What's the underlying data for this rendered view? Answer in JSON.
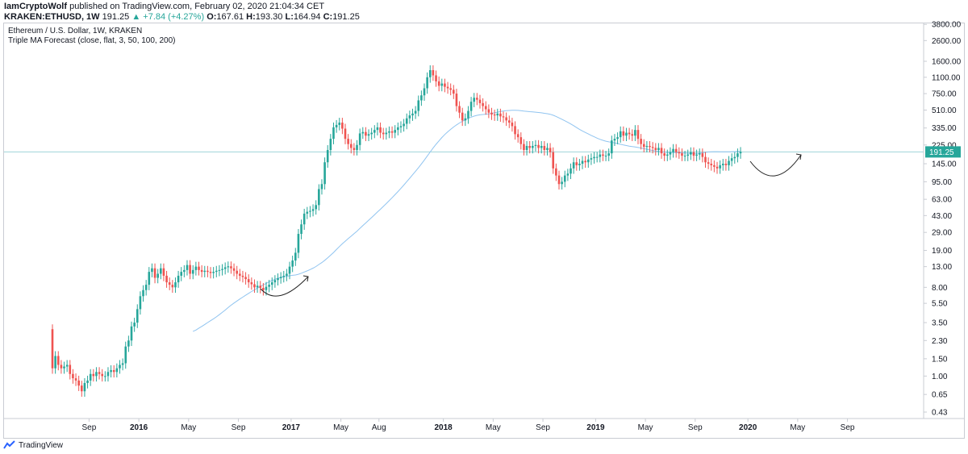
{
  "header": {
    "author": "IamCryptoWolf",
    "published_text": "published on TradingView.com, February 02, 2020 21:04:34 CET",
    "symbol": "KRAKEN:ETHUSD, 1W",
    "last": "191.25",
    "change": "▲ +7.84 (+4.27%)",
    "o_label": "O:",
    "o_value": "167.61",
    "h_label": "H:",
    "h_value": "193.30",
    "l_label": "L:",
    "l_value": "164.94",
    "c_label": "C:",
    "c_value": "191.25"
  },
  "legend": {
    "title": "Ethereum / U.S. Dollar, 1W, KRAKEN",
    "indicator": "Triple MA Forecast (close, flat, 3, 50, 100, 200)"
  },
  "footer": {
    "brand": "TradingView"
  },
  "colors": {
    "up": "#26a69a",
    "down": "#ef5350",
    "ma": "#90c4f0",
    "price_line": "#9fd4d8",
    "arrow": "#222222"
  },
  "chart_data": {
    "type": "candlestick",
    "scale": "log",
    "title": "Ethereum / U.S. Dollar, 1W, KRAKEN",
    "y_ticks": [
      "3800.00",
      "2600.00",
      "1600.00",
      "1100.00",
      "750.00",
      "510.00",
      "335.00",
      "225.00",
      "145.00",
      "95.00",
      "63.00",
      "43.00",
      "29.00",
      "19.00",
      "13.00",
      "8.00",
      "5.50",
      "3.50",
      "2.30",
      "1.50",
      "1.00",
      "0.65",
      "0.43"
    ],
    "y_tick_values": [
      3800,
      2600,
      1600,
      1100,
      750,
      510,
      335,
      225,
      145,
      95,
      63,
      43,
      29,
      19,
      13,
      8,
      5.5,
      3.5,
      2.3,
      1.5,
      1.0,
      0.65,
      0.43
    ],
    "x_ticks": [
      {
        "label": "Sep",
        "week": 7,
        "bold": false
      },
      {
        "label": "2016",
        "week": 24,
        "bold": true
      },
      {
        "label": "May",
        "week": 41,
        "bold": false
      },
      {
        "label": "Sep",
        "week": 58,
        "bold": false
      },
      {
        "label": "2017",
        "week": 76,
        "bold": true
      },
      {
        "label": "May",
        "week": 93,
        "bold": false
      },
      {
        "label": "Aug",
        "week": 106,
        "bold": false
      },
      {
        "label": "2018",
        "week": 128,
        "bold": true
      },
      {
        "label": "May",
        "week": 145,
        "bold": false
      },
      {
        "label": "Sep",
        "week": 162,
        "bold": false
      },
      {
        "label": "2019",
        "week": 180,
        "bold": true
      },
      {
        "label": "May",
        "week": 197,
        "bold": false
      },
      {
        "label": "Sep",
        "week": 214,
        "bold": false
      },
      {
        "label": "2020",
        "week": 232,
        "bold": true
      },
      {
        "label": "May",
        "week": 249,
        "bold": false
      },
      {
        "label": "Sep",
        "week": 266,
        "bold": false
      }
    ],
    "last_price_label": "191.25",
    "last_price": 191.25,
    "closes": [
      1.2,
      1.6,
      1.3,
      1.2,
      1.25,
      1.3,
      1.05,
      0.95,
      0.9,
      0.8,
      0.7,
      0.85,
      0.9,
      1.05,
      1.0,
      1.1,
      1.05,
      1.0,
      1.0,
      1.1,
      1.15,
      1.1,
      1.2,
      1.3,
      1.35,
      2.0,
      2.3,
      3.2,
      3.5,
      4.8,
      6.5,
      7.5,
      8.5,
      11.5,
      12.5,
      10.0,
      11.0,
      12.5,
      10.5,
      9.0,
      8.5,
      8.0,
      9.0,
      10.5,
      11.5,
      12.0,
      13.5,
      11.0,
      12.0,
      13.0,
      12.0,
      11.5,
      11.8,
      11.5,
      11.2,
      11.5,
      11.8,
      12.0,
      12.3,
      12.8,
      13.1,
      12.5,
      11.8,
      11.0,
      10.5,
      10.2,
      9.7,
      9.0,
      8.6,
      8.0,
      8.3,
      7.9,
      7.5,
      8.1,
      8.5,
      9.0,
      9.5,
      9.9,
      10.2,
      10.5,
      11.0,
      13.0,
      15.0,
      18.0,
      28.0,
      35.0,
      45.0,
      47.0,
      48.0,
      50.0,
      55.0,
      80.0,
      90.0,
      150.0,
      200.0,
      260.0,
      340.0,
      360.0,
      380.0,
      330.0,
      260.0,
      230.0,
      210.0,
      200.0,
      225.0,
      295.0,
      305.0,
      280.0,
      290.0,
      300.0,
      320.0,
      340.0,
      300.0,
      290.0,
      300.0,
      310.0,
      300.0,
      320.0,
      340.0,
      350.0,
      370.0,
      420.0,
      450.0,
      470.0,
      500.0,
      640.0,
      720.0,
      850.0,
      1100.0,
      1300.0,
      1150.0,
      1000.0,
      900.0,
      950.0,
      880.0,
      850.0,
      820.0,
      750.0,
      560.0,
      480.0,
      400.0,
      420.0,
      500.0,
      620.0,
      680.0,
      650.0,
      600.0,
      560.0,
      520.0,
      480.0,
      460.0,
      450.0,
      470.0,
      440.0,
      430.0,
      400.0,
      380.0,
      350.0,
      290.0,
      270.0,
      230.0,
      200.0,
      220.0,
      210.0,
      220.0,
      225.0,
      210.0,
      220.0,
      200.0,
      210.0,
      190.0,
      130.0,
      110.0,
      90.0,
      95.0,
      110.0,
      115.0,
      130.0,
      150.0,
      140.0,
      145.0,
      155.0,
      150.0,
      160.0,
      165.0,
      170.0,
      170.0,
      180.0,
      175.0,
      175.0,
      185.0,
      250.0,
      260.0,
      270.0,
      310.0,
      280.0,
      300.0,
      290.0,
      280.0,
      320.0,
      260.0,
      230.0,
      215.0,
      220.0,
      215.0,
      210.0,
      200.0,
      210.0,
      185.0,
      175.0,
      180.0,
      190.0,
      205.0,
      190.0,
      185.0,
      175.0,
      175.0,
      180.0,
      190.0,
      175.0,
      180.0,
      185.0,
      170.0,
      150.0,
      145.0,
      140.0,
      135.0,
      130.0,
      140.0,
      145.0,
      140.0,
      155.0,
      165.0,
      170.0,
      185.0,
      191.25
    ],
    "ma_series_name": "Triple MA Forecast (close, flat, 3, 50, 100, 200)"
  }
}
